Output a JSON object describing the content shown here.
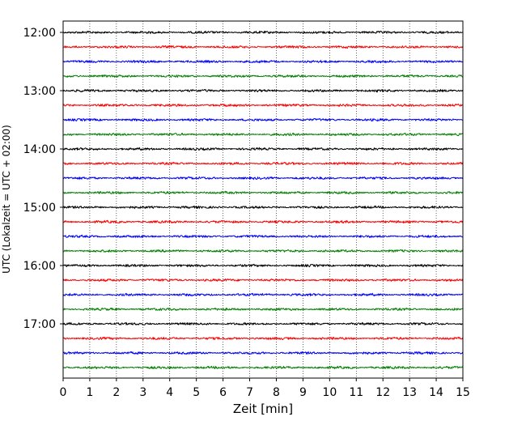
{
  "chart_data": {
    "type": "line",
    "title": "",
    "xlabel": "Zeit  [min]",
    "ylabel": "UTC (Lokalzeit = UTC + 02:00)",
    "xlim": [
      0,
      15
    ],
    "x_ticks": [
      "0",
      "1",
      "2",
      "3",
      "4",
      "5",
      "6",
      "7",
      "8",
      "9",
      "10",
      "11",
      "12",
      "13",
      "14",
      "15"
    ],
    "y_tick_labels": [
      "12:00",
      "13:00",
      "14:00",
      "15:00",
      "16:00",
      "17:00"
    ],
    "traces_per_hour": 4,
    "trace_interval_min": 15,
    "trace_start": "12:00",
    "trace_count": 24,
    "trace_colors": [
      "#000000",
      "#ff0000",
      "#0000ff",
      "#008000"
    ],
    "grid_x": true,
    "legend": "none"
  }
}
